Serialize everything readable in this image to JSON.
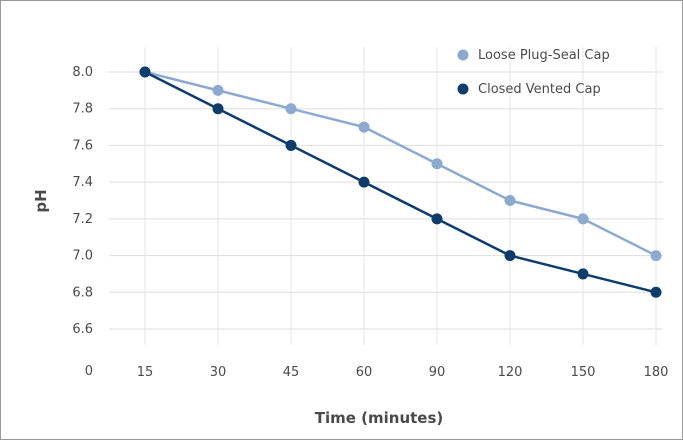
{
  "chart_data": {
    "type": "line",
    "title": "",
    "xlabel": "Time (minutes)",
    "ylabel": "pH",
    "categories": [
      "15",
      "30",
      "45",
      "60",
      "90",
      "120",
      "150",
      "180"
    ],
    "y_ticks": [
      "0",
      "6.6",
      "6.8",
      "7.0",
      "7.2",
      "7.4",
      "7.6",
      "7.8",
      "8.0"
    ],
    "ylim": [
      6.5,
      8.2
    ],
    "axis_break": true,
    "grid": true,
    "legend_position": "top-right",
    "series": [
      {
        "name": "Loose Plug-Seal Cap",
        "color": "#8ea9cf",
        "values": [
          8.0,
          7.9,
          7.8,
          7.7,
          7.5,
          7.3,
          7.2,
          7.0
        ]
      },
      {
        "name": "Closed Vented Cap",
        "color": "#0e3d6b",
        "values": [
          8.0,
          7.8,
          7.6,
          7.4,
          7.2,
          7.0,
          6.9,
          6.8
        ]
      }
    ]
  }
}
